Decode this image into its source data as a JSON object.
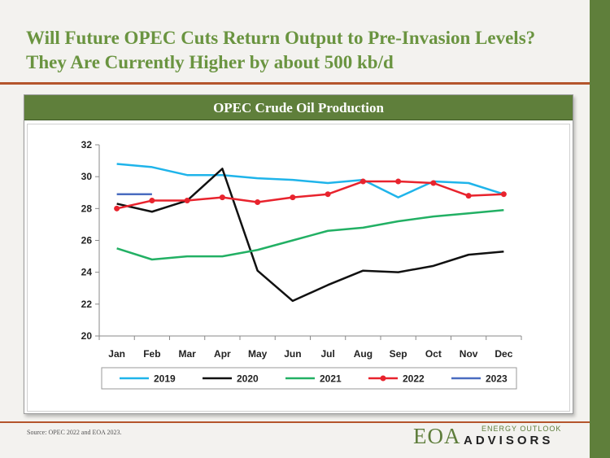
{
  "slide": {
    "title": "Will Future OPEC Cuts Return Output to Pre-Invasion Levels? They Are Currently Higher by about 500 kb/d",
    "source": "Source: OPEC 2022 and EOA 2023.",
    "logo": {
      "main": "EOA",
      "upper": "ENERGY OUTLOOK",
      "lower": "ADVISORS"
    }
  },
  "chart_data": {
    "type": "line",
    "title": "OPEC Crude Oil Production",
    "categories": [
      "Jan",
      "Feb",
      "Mar",
      "Apr",
      "May",
      "Jun",
      "Jul",
      "Aug",
      "Sep",
      "Oct",
      "Nov",
      "Dec"
    ],
    "ylim": [
      20,
      32
    ],
    "yticks": [
      20,
      22,
      24,
      26,
      28,
      30,
      32
    ],
    "grid": false,
    "legend_position": "bottom",
    "series": [
      {
        "name": "2019",
        "color": "#1fb4ea",
        "markers": false,
        "values": [
          30.8,
          30.6,
          30.1,
          30.1,
          29.9,
          29.8,
          29.6,
          29.8,
          28.7,
          29.7,
          29.6,
          28.9
        ]
      },
      {
        "name": "2020",
        "color": "#111111",
        "markers": false,
        "values": [
          28.3,
          27.8,
          28.5,
          30.5,
          24.1,
          22.2,
          23.2,
          24.1,
          24.0,
          24.4,
          25.1,
          25.3
        ]
      },
      {
        "name": "2021",
        "color": "#22b064",
        "markers": false,
        "values": [
          25.5,
          24.8,
          25.0,
          25.0,
          25.4,
          26.0,
          26.6,
          26.8,
          27.2,
          27.5,
          27.7,
          27.9
        ]
      },
      {
        "name": "2022",
        "color": "#e8232d",
        "markers": true,
        "values": [
          28.0,
          28.5,
          28.5,
          28.7,
          28.4,
          28.7,
          28.9,
          29.7,
          29.7,
          29.6,
          28.8,
          28.9
        ]
      },
      {
        "name": "2023",
        "color": "#4a6cc0",
        "markers": false,
        "values": [
          28.9,
          28.9,
          null,
          null,
          null,
          null,
          null,
          null,
          null,
          null,
          null,
          null
        ]
      }
    ]
  }
}
